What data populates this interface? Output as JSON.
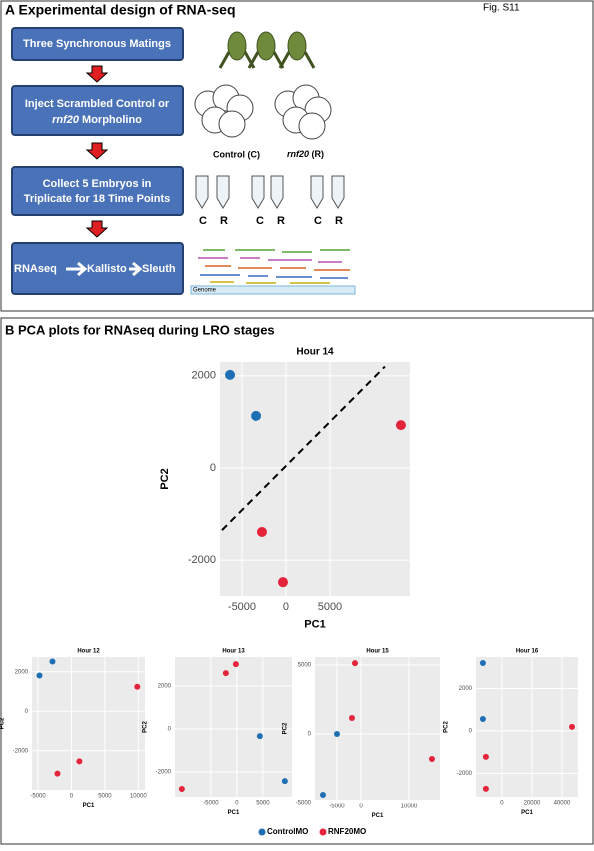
{
  "panel_a": {
    "title": "A Experimental design of RNA-seq",
    "figure_label": "Fig. S11",
    "steps": [
      "Three Synchronous Matings",
      {
        "before": "Inject Scrambled Control or",
        "gene": "rnf20",
        "after": "Morpholino"
      },
      [
        "Collect 5 Embryos in",
        "Triplicate for 18 Time Points"
      ],
      [
        "RNAseq",
        "Kallisto",
        "Sleuth"
      ]
    ],
    "groups": [
      {
        "label": "Control (C)"
      },
      {
        "gene": "rnf20",
        "label": "(R)"
      }
    ],
    "tube_labels": [
      "C",
      "R"
    ],
    "genome_label": "Genome"
  },
  "panel_b_title": "B PCA plots for RNAseq during LRO stages",
  "chart_data": [
    {
      "type": "scatter",
      "title": "Hour 14",
      "x_label": "PC1",
      "y_label": "PC2",
      "xlim": [
        -7500,
        14100
      ],
      "ylim": [
        -2780,
        2300
      ],
      "xticks": [
        -5000,
        0,
        5000
      ],
      "yticks": [
        -2000,
        0,
        2000
      ],
      "grid": true,
      "series": [
        {
          "name": "ControlMO",
          "color": "#1f6fb4",
          "x": [
            -6360,
            -3400
          ],
          "y": [
            2020,
            1130
          ]
        },
        {
          "name": "RNF20MO",
          "color": "#e3243b",
          "x": [
            13070,
            -2730,
            -340
          ],
          "y": [
            930,
            -1390,
            -2480
          ]
        }
      ],
      "reference_line": {
        "x": [
          -7270,
          11250
        ],
        "y": [
          -1350,
          2200
        ]
      }
    },
    {
      "type": "scatter",
      "title": "Hour 12",
      "x_label": "PC1",
      "y_label": "PC2",
      "xlim": [
        -5900,
        11000
      ],
      "ylim": [
        -3990,
        2750
      ],
      "xticks": [
        -5000,
        0,
        5000,
        10000
      ],
      "yticks": [
        -2000,
        0,
        2000
      ],
      "grid": true,
      "series": [
        {
          "color": "#1f6fb4",
          "x": [
            -2840,
            -4780
          ],
          "y": [
            2520,
            1810
          ]
        },
        {
          "color": "#e3243b",
          "x": [
            9850,
            1190,
            -2090
          ],
          "y": [
            1240,
            -2540,
            -3160
          ]
        }
      ]
    },
    {
      "type": "scatter",
      "title": "Hour 13",
      "x_label": "PC1",
      "y_label": "PC2",
      "xlim": [
        -11900,
        10600
      ],
      "ylim": [
        -3160,
        3350
      ],
      "xticks": [
        -5000,
        0,
        5000
      ],
      "yticks": [
        -2000,
        0,
        2000
      ],
      "grid": true,
      "series": [
        {
          "color": "#1f6fb4",
          "x": [
            4420,
            9230
          ],
          "y": [
            -330,
            -2420
          ]
        },
        {
          "color": "#e3243b",
          "x": [
            -190,
            -2120,
            -10580
          ],
          "y": [
            3020,
            2600,
            -2790
          ]
        }
      ]
    },
    {
      "type": "scatter",
      "title": "Hour 15",
      "x_label": "PC1",
      "y_label": "PC2",
      "xlim": [
        -9580,
        16460
      ],
      "ylim": [
        -4780,
        5580
      ],
      "xticks": [
        -5000,
        0,
        10000
      ],
      "yticks": [
        -5000,
        0,
        5000
      ],
      "grid": true,
      "series": [
        {
          "color": "#1f6fb4",
          "x": [
            -5000,
            -7920
          ],
          "y": [
            0,
            -4420
          ]
        },
        {
          "color": "#e3243b",
          "x": [
            -1250,
            -1880,
            14790
          ],
          "y": [
            5140,
            1160,
            -1810
          ]
        }
      ]
    },
    {
      "type": "scatter",
      "title": "Hour 16",
      "x_label": "PC1",
      "y_label": "PC2",
      "xlim": [
        -17300,
        50700
      ],
      "ylim": [
        -3110,
        3480
      ],
      "xticks": [
        0,
        20000,
        40000
      ],
      "yticks": [
        -2000,
        0,
        2000
      ],
      "grid": true,
      "series": [
        {
          "color": "#1f6fb4",
          "x": [
            -12700,
            -12700
          ],
          "y": [
            3200,
            560
          ]
        },
        {
          "color": "#e3243b",
          "x": [
            -10700,
            -10700,
            46700
          ],
          "y": [
            -1220,
            -2730,
            190
          ]
        }
      ]
    }
  ]
}
